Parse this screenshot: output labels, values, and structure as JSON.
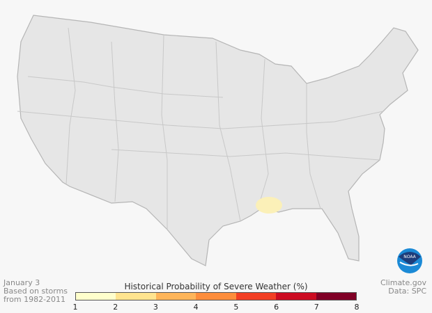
{
  "caption": {
    "date": "January 3",
    "line2": "Based on storms",
    "line3": "from 1982-2011"
  },
  "credit": {
    "site": "Climate.gov",
    "source": "Data: SPC"
  },
  "legend": {
    "title": "Historical Probability of Severe Weather (%)",
    "ticks": [
      "1",
      "2",
      "3",
      "4",
      "5",
      "6",
      "7",
      "8"
    ],
    "colors": [
      "#ffffcc",
      "#ffe48f",
      "#feb55a",
      "#fd8d3c",
      "#f23f24",
      "#cc0c22",
      "#800026"
    ]
  },
  "logo": {
    "text": "NOAA"
  },
  "map": {
    "land_color": "#e6e6e6",
    "border_color": "#b5b5b5",
    "highlight_region": "Mississippi / Louisiana",
    "highlight_probability_range": "1-2%",
    "highlight_color": "#fbf0b8"
  }
}
